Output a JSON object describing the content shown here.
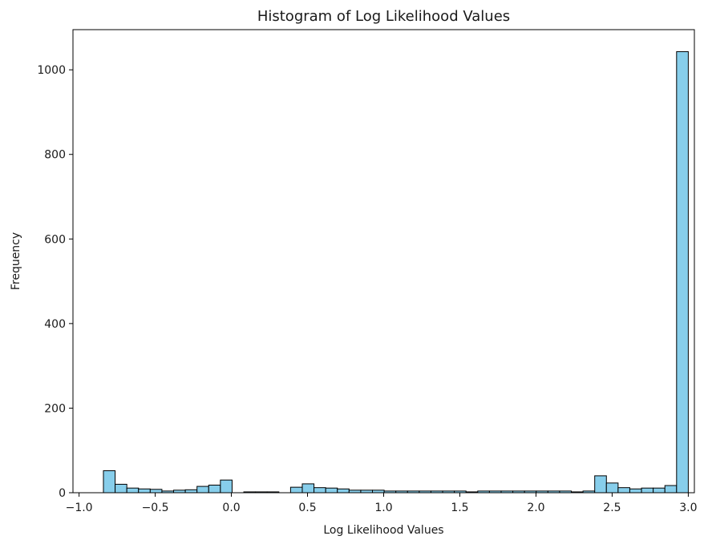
{
  "chart_data": {
    "type": "bar",
    "title": "Histogram of Log Likelihood Values",
    "xlabel": "Log Likelihood Values",
    "ylabel": "Frequency",
    "xlim": [
      -1.04,
      3.04
    ],
    "ylim": [
      0,
      1095
    ],
    "xticks": [
      -1.0,
      -0.5,
      0.0,
      0.5,
      1.0,
      1.5,
      2.0,
      2.5,
      3.0
    ],
    "xtick_labels": [
      "−1.0",
      "−0.5",
      "0.0",
      "0.5",
      "1.0",
      "1.5",
      "2.0",
      "2.5",
      "3.0"
    ],
    "yticks": [
      0,
      200,
      400,
      600,
      800,
      1000
    ],
    "ytick_labels": [
      "0",
      "200",
      "400",
      "600",
      "800",
      "1000"
    ],
    "grid": false,
    "legend": "none",
    "bar_color": "#87ceeb",
    "edge_color": "#000000",
    "bin_start": -0.84,
    "bin_width": 0.0768,
    "values": [
      52,
      20,
      11,
      9,
      8,
      4,
      6,
      7,
      15,
      18,
      30,
      0,
      2,
      2,
      2,
      0,
      13,
      21,
      12,
      11,
      9,
      6,
      6,
      6,
      4,
      4,
      4,
      4,
      4,
      4,
      4,
      2,
      4,
      4,
      4,
      4,
      4,
      4,
      4,
      4,
      2,
      4,
      40,
      23,
      12,
      9,
      11,
      11,
      17,
      1043
    ]
  }
}
